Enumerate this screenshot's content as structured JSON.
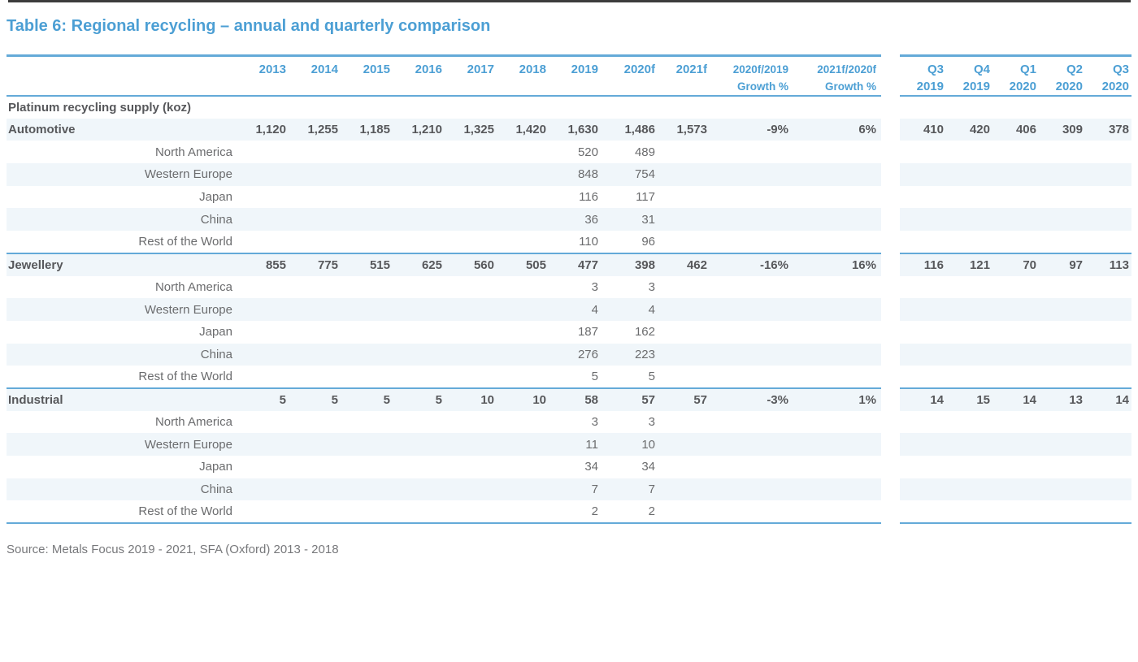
{
  "page": {
    "title": "Table 6: Regional recycling – annual and quarterly comparison",
    "source_note": "Source: Metals Focus 2019 - 2021, SFA (Oxford) 2013 - 2018"
  },
  "colors": {
    "accent_blue": "#4C9FD4",
    "line_blue": "#64AAD8",
    "row_stripe": "#F0F6FA",
    "text_dark": "#57585B",
    "text_gray": "#6B6C6E",
    "source_gray": "#77787B",
    "top_bar_dark": "#3C3C3C"
  },
  "table": {
    "year_headers": [
      "2013",
      "2014",
      "2015",
      "2016",
      "2017",
      "2018",
      "2019",
      "2020f",
      "2021f"
    ],
    "growth_headers": [
      {
        "line1": "2020f/2019",
        "line2": "Growth %"
      },
      {
        "line1": "2021f/2020f",
        "line2": "Growth %"
      }
    ],
    "quarter_headers": [
      {
        "quarter": "Q3",
        "year": "2019"
      },
      {
        "quarter": "Q4",
        "year": "2019"
      },
      {
        "quarter": "Q1",
        "year": "2020"
      },
      {
        "quarter": "Q2",
        "year": "2020"
      },
      {
        "quarter": "Q3",
        "year": "2020"
      }
    ],
    "rows": [
      {
        "type": "section",
        "label": "Platinum recycling supply (koz)",
        "annual": [],
        "growth": [],
        "quarters": []
      },
      {
        "type": "category",
        "label": "Automotive",
        "annual": [
          "1,120",
          "1,255",
          "1,185",
          "1,210",
          "1,325",
          "1,420",
          "1,630",
          "1,486",
          "1,573"
        ],
        "growth": [
          "-9%",
          "6%"
        ],
        "quarters": [
          "410",
          "420",
          "406",
          "309",
          "378"
        ]
      },
      {
        "type": "region",
        "label": "North America",
        "annual": [
          "",
          "",
          "",
          "",
          "",
          "",
          "520",
          "489",
          ""
        ],
        "growth": [
          "",
          ""
        ],
        "quarters": [
          "",
          "",
          "",
          "",
          ""
        ]
      },
      {
        "type": "region",
        "label": "Western Europe",
        "annual": [
          "",
          "",
          "",
          "",
          "",
          "",
          "848",
          "754",
          ""
        ],
        "growth": [
          "",
          ""
        ],
        "quarters": [
          "",
          "",
          "",
          "",
          ""
        ]
      },
      {
        "type": "region",
        "label": "Japan",
        "annual": [
          "",
          "",
          "",
          "",
          "",
          "",
          "116",
          "117",
          ""
        ],
        "growth": [
          "",
          ""
        ],
        "quarters": [
          "",
          "",
          "",
          "",
          ""
        ]
      },
      {
        "type": "region",
        "label": "China",
        "annual": [
          "",
          "",
          "",
          "",
          "",
          "",
          "36",
          "31",
          ""
        ],
        "growth": [
          "",
          ""
        ],
        "quarters": [
          "",
          "",
          "",
          "",
          ""
        ]
      },
      {
        "type": "region",
        "label": "Rest of the World",
        "annual": [
          "",
          "",
          "",
          "",
          "",
          "",
          "110",
          "96",
          ""
        ],
        "growth": [
          "",
          ""
        ],
        "quarters": [
          "",
          "",
          "",
          "",
          ""
        ]
      },
      {
        "type": "category",
        "label": "Jewellery",
        "annual": [
          "855",
          "775",
          "515",
          "625",
          "560",
          "505",
          "477",
          "398",
          "462"
        ],
        "growth": [
          "-16%",
          "16%"
        ],
        "quarters": [
          "116",
          "121",
          "70",
          "97",
          "113"
        ]
      },
      {
        "type": "region",
        "label": "North America",
        "annual": [
          "",
          "",
          "",
          "",
          "",
          "",
          "3",
          "3",
          ""
        ],
        "growth": [
          "",
          ""
        ],
        "quarters": [
          "",
          "",
          "",
          "",
          ""
        ]
      },
      {
        "type": "region",
        "label": "Western Europe",
        "annual": [
          "",
          "",
          "",
          "",
          "",
          "",
          "4",
          "4",
          ""
        ],
        "growth": [
          "",
          ""
        ],
        "quarters": [
          "",
          "",
          "",
          "",
          ""
        ]
      },
      {
        "type": "region",
        "label": "Japan",
        "annual": [
          "",
          "",
          "",
          "",
          "",
          "",
          "187",
          "162",
          ""
        ],
        "growth": [
          "",
          ""
        ],
        "quarters": [
          "",
          "",
          "",
          "",
          ""
        ]
      },
      {
        "type": "region",
        "label": "China",
        "annual": [
          "",
          "",
          "",
          "",
          "",
          "",
          "276",
          "223",
          ""
        ],
        "growth": [
          "",
          ""
        ],
        "quarters": [
          "",
          "",
          "",
          "",
          ""
        ]
      },
      {
        "type": "region",
        "label": "Rest of the World",
        "annual": [
          "",
          "",
          "",
          "",
          "",
          "",
          "5",
          "5",
          ""
        ],
        "growth": [
          "",
          ""
        ],
        "quarters": [
          "",
          "",
          "",
          "",
          ""
        ]
      },
      {
        "type": "category",
        "label": "Industrial",
        "annual": [
          "5",
          "5",
          "5",
          "5",
          "10",
          "10",
          "58",
          "57",
          "57"
        ],
        "growth": [
          "-3%",
          "1%"
        ],
        "quarters": [
          "14",
          "15",
          "14",
          "13",
          "14"
        ]
      },
      {
        "type": "region",
        "label": "North America",
        "annual": [
          "",
          "",
          "",
          "",
          "",
          "",
          "3",
          "3",
          ""
        ],
        "growth": [
          "",
          ""
        ],
        "quarters": [
          "",
          "",
          "",
          "",
          ""
        ]
      },
      {
        "type": "region",
        "label": "Western Europe",
        "annual": [
          "",
          "",
          "",
          "",
          "",
          "",
          "11",
          "10",
          ""
        ],
        "growth": [
          "",
          ""
        ],
        "quarters": [
          "",
          "",
          "",
          "",
          ""
        ]
      },
      {
        "type": "region",
        "label": "Japan",
        "annual": [
          "",
          "",
          "",
          "",
          "",
          "",
          "34",
          "34",
          ""
        ],
        "growth": [
          "",
          ""
        ],
        "quarters": [
          "",
          "",
          "",
          "",
          ""
        ]
      },
      {
        "type": "region",
        "label": "China",
        "annual": [
          "",
          "",
          "",
          "",
          "",
          "",
          "7",
          "7",
          ""
        ],
        "growth": [
          "",
          ""
        ],
        "quarters": [
          "",
          "",
          "",
          "",
          ""
        ]
      },
      {
        "type": "region",
        "label": "Rest of the World",
        "annual": [
          "",
          "",
          "",
          "",
          "",
          "",
          "2",
          "2",
          ""
        ],
        "growth": [
          "",
          ""
        ],
        "quarters": [
          "",
          "",
          "",
          "",
          ""
        ]
      }
    ]
  }
}
